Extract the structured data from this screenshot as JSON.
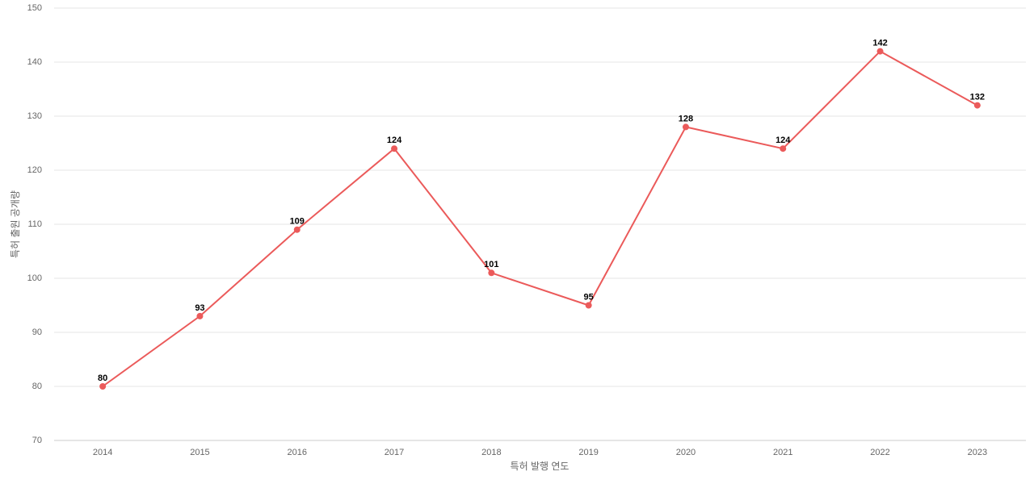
{
  "chart_data": {
    "type": "line",
    "x_label": "특허 발행 연도",
    "y_label": "특허 출원 공개량",
    "categories": [
      "2014",
      "2015",
      "2016",
      "2017",
      "2018",
      "2019",
      "2020",
      "2021",
      "2022",
      "2023"
    ],
    "values": [
      80,
      93,
      109,
      124,
      101,
      95,
      128,
      124,
      142,
      132
    ],
    "color": "#eb5a5a",
    "ylim": [
      70,
      150
    ],
    "yticks": [
      70,
      80,
      90,
      100,
      110,
      120,
      130,
      140,
      150
    ],
    "grid": true
  }
}
